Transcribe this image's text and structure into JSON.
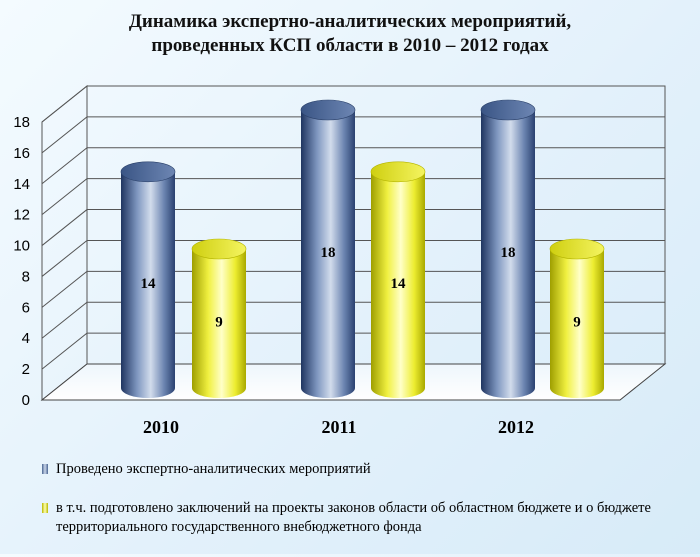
{
  "chart_data": {
    "type": "bar",
    "title": [
      "Динамика экспертно-аналитических мероприятий,",
      "проведенных КСП области в 2010 – 2012 годах"
    ],
    "categories": [
      "2010",
      "2011",
      "2012"
    ],
    "series": [
      {
        "name": "Проведено экспертно-аналитических мероприятий",
        "values": [
          14,
          18,
          18
        ],
        "color": "#3d5a8c"
      },
      {
        "name": "в т.ч. подготовлено заключений на проекты законов области об областном бюджете и о бюджете территориального государственного внебюджетного фонда",
        "values": [
          9,
          14,
          9
        ],
        "color": "#e8e81a"
      }
    ],
    "ylim": [
      0,
      18
    ],
    "yticks": [
      "0",
      "2",
      "4",
      "6",
      "8",
      "10",
      "12",
      "14",
      "16",
      "18"
    ],
    "grid": true,
    "legend": "bottom"
  }
}
